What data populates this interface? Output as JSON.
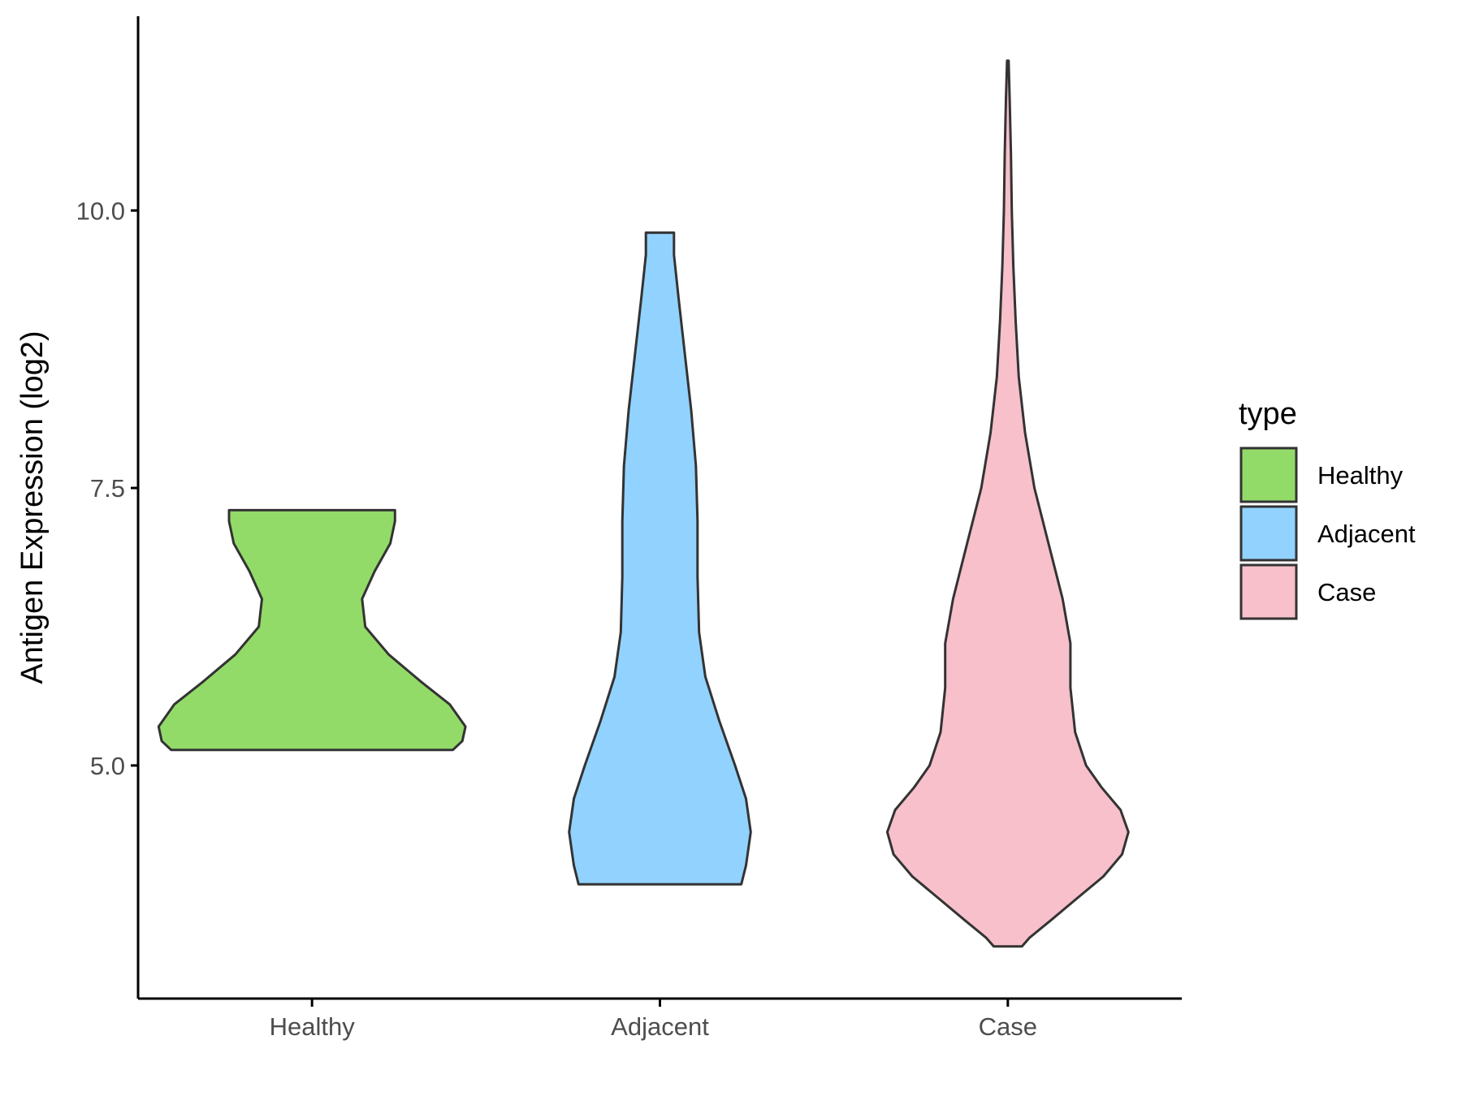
{
  "chart_data": {
    "type": "violin",
    "title": "",
    "xlabel": "",
    "ylabel": "Antigen Expression (log2)",
    "ylim": [
      2.9,
      11.75
    ],
    "yticks": [
      {
        "value": 5.0,
        "label": "5.0"
      },
      {
        "value": 7.5,
        "label": "7.5"
      },
      {
        "value": 10.0,
        "label": "10.0"
      }
    ],
    "categories": [
      "Healthy",
      "Adjacent",
      "Case"
    ],
    "legend": {
      "title": "type",
      "position": "right",
      "items": [
        {
          "label": "Healthy",
          "color": "#93DB69"
        },
        {
          "label": "Adjacent",
          "color": "#92D2FF"
        },
        {
          "label": "Case",
          "color": "#F7C0CB"
        }
      ]
    },
    "grid": false,
    "series": [
      {
        "category": "Healthy",
        "color": "#93DB69",
        "min": 5.14,
        "max": 7.3,
        "density": [
          {
            "y": 5.14,
            "w": 0.9
          },
          {
            "y": 5.22,
            "w": 0.96
          },
          {
            "y": 5.35,
            "w": 0.98
          },
          {
            "y": 5.55,
            "w": 0.88
          },
          {
            "y": 5.75,
            "w": 0.7
          },
          {
            "y": 6.0,
            "w": 0.49
          },
          {
            "y": 6.25,
            "w": 0.34
          },
          {
            "y": 6.5,
            "w": 0.32
          },
          {
            "y": 6.75,
            "w": 0.4
          },
          {
            "y": 7.0,
            "w": 0.5
          },
          {
            "y": 7.2,
            "w": 0.53
          },
          {
            "y": 7.3,
            "w": 0.53
          }
        ]
      },
      {
        "category": "Adjacent",
        "color": "#92D2FF",
        "min": 3.93,
        "max": 9.8,
        "density": [
          {
            "y": 3.93,
            "w": 0.52
          },
          {
            "y": 4.1,
            "w": 0.55
          },
          {
            "y": 4.4,
            "w": 0.58
          },
          {
            "y": 4.7,
            "w": 0.55
          },
          {
            "y": 5.0,
            "w": 0.48
          },
          {
            "y": 5.4,
            "w": 0.38
          },
          {
            "y": 5.8,
            "w": 0.29
          },
          {
            "y": 6.2,
            "w": 0.25
          },
          {
            "y": 6.7,
            "w": 0.24
          },
          {
            "y": 7.2,
            "w": 0.24
          },
          {
            "y": 7.7,
            "w": 0.23
          },
          {
            "y": 8.2,
            "w": 0.2
          },
          {
            "y": 8.7,
            "w": 0.16
          },
          {
            "y": 9.2,
            "w": 0.12
          },
          {
            "y": 9.6,
            "w": 0.09
          },
          {
            "y": 9.8,
            "w": 0.09
          }
        ]
      },
      {
        "category": "Case",
        "color": "#F7C0CB",
        "min": 3.37,
        "max": 11.35,
        "density": [
          {
            "y": 3.37,
            "w": 0.09
          },
          {
            "y": 3.45,
            "w": 0.14
          },
          {
            "y": 3.6,
            "w": 0.27
          },
          {
            "y": 3.8,
            "w": 0.44
          },
          {
            "y": 4.0,
            "w": 0.61
          },
          {
            "y": 4.2,
            "w": 0.73
          },
          {
            "y": 4.4,
            "w": 0.77
          },
          {
            "y": 4.6,
            "w": 0.72
          },
          {
            "y": 4.8,
            "w": 0.6
          },
          {
            "y": 5.0,
            "w": 0.5
          },
          {
            "y": 5.3,
            "w": 0.43
          },
          {
            "y": 5.7,
            "w": 0.4
          },
          {
            "y": 6.1,
            "w": 0.4
          },
          {
            "y": 6.5,
            "w": 0.35
          },
          {
            "y": 7.0,
            "w": 0.26
          },
          {
            "y": 7.5,
            "w": 0.17
          },
          {
            "y": 8.0,
            "w": 0.11
          },
          {
            "y": 8.5,
            "w": 0.07
          },
          {
            "y": 9.0,
            "w": 0.05
          },
          {
            "y": 9.5,
            "w": 0.035
          },
          {
            "y": 10.0,
            "w": 0.025
          },
          {
            "y": 10.5,
            "w": 0.02
          },
          {
            "y": 11.0,
            "w": 0.012
          },
          {
            "y": 11.35,
            "w": 0.005
          }
        ]
      }
    ]
  }
}
